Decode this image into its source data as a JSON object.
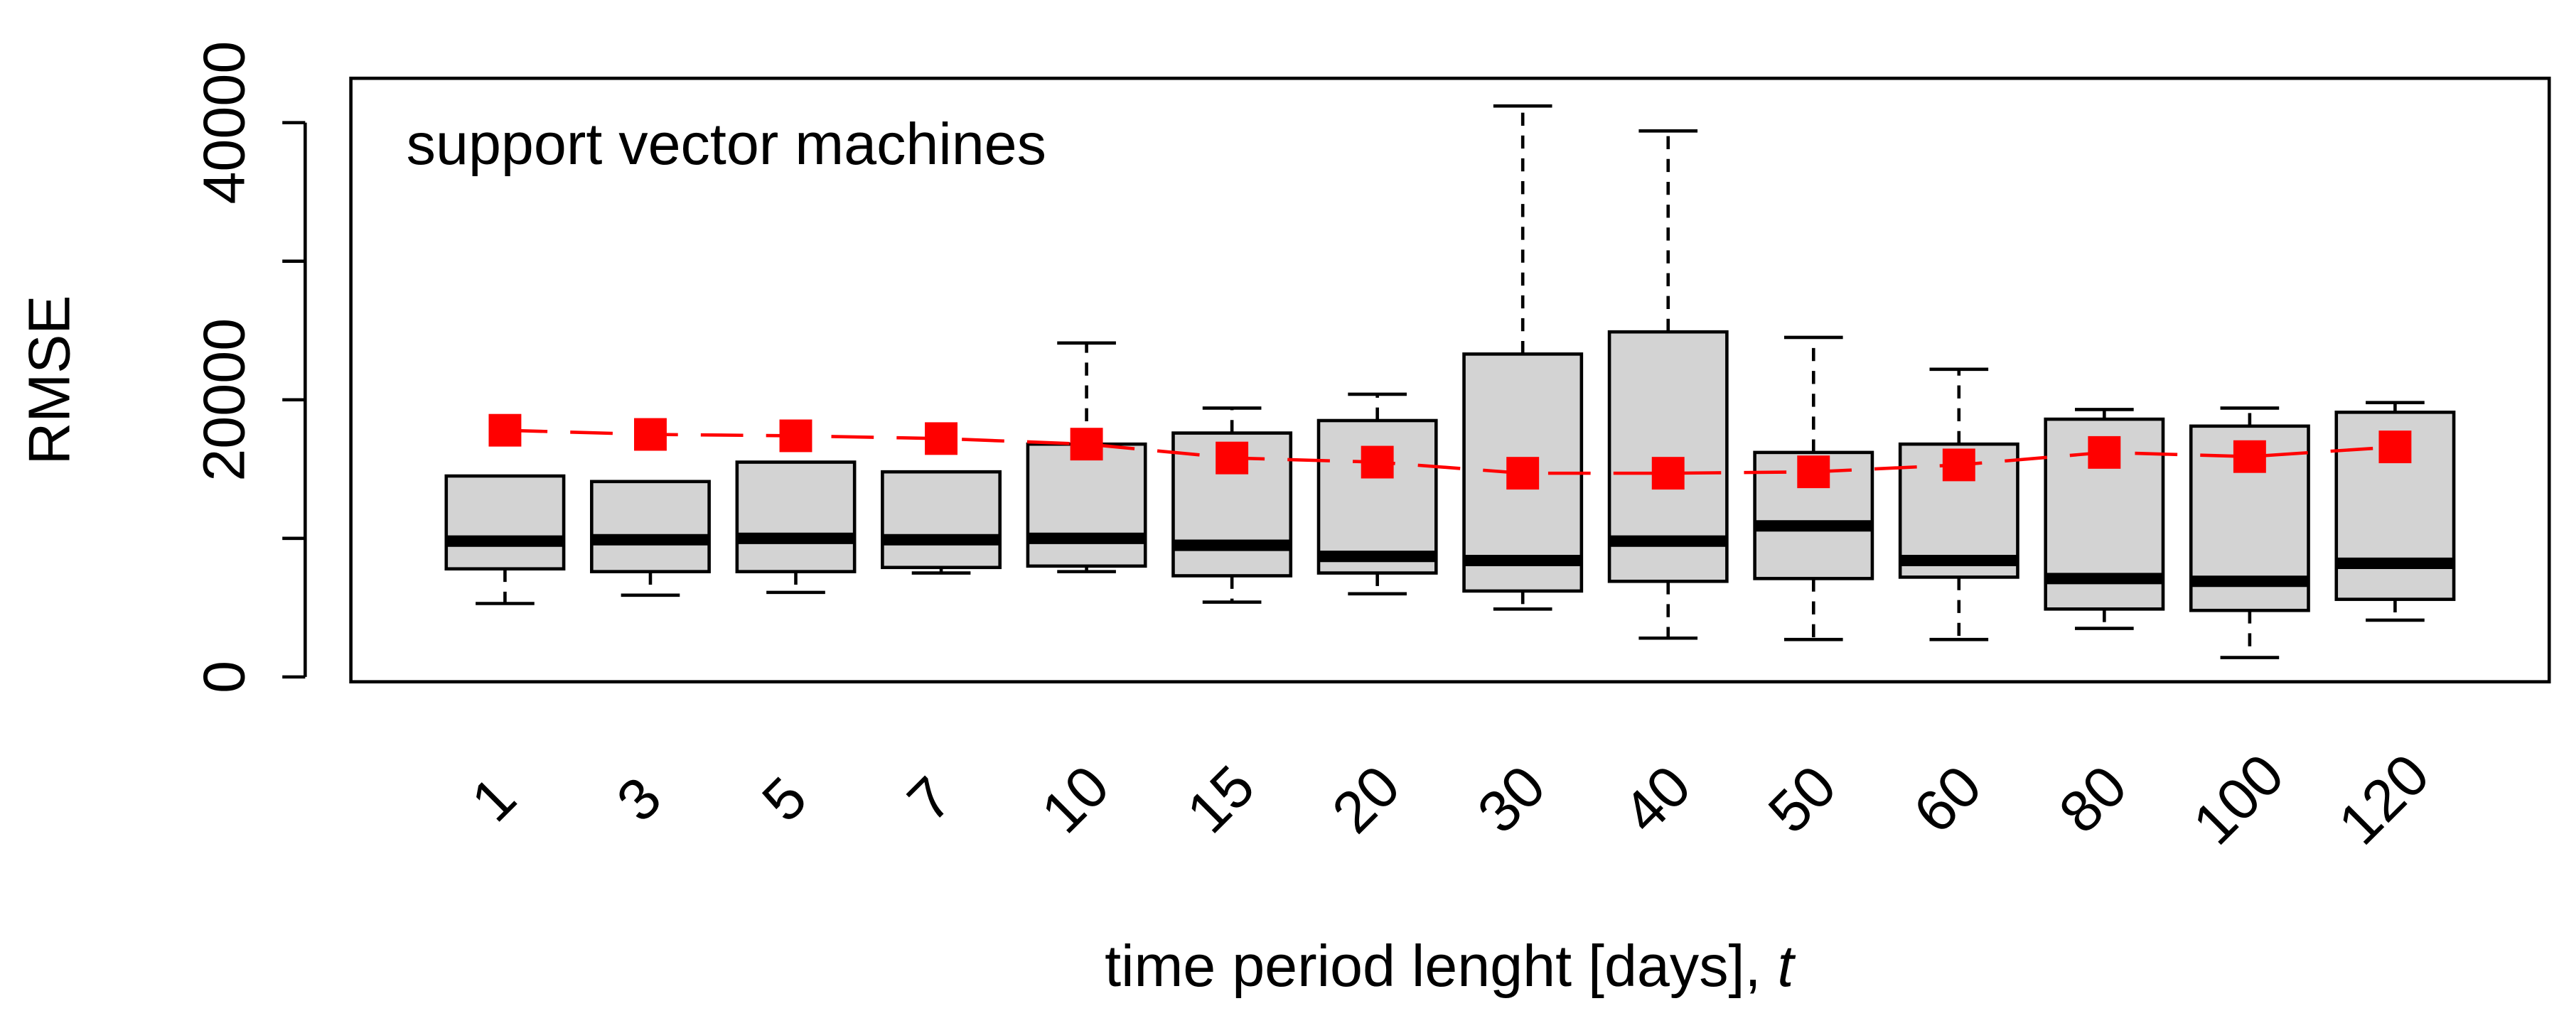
{
  "chart_data": {
    "type": "box",
    "title": "support vector machines",
    "y_label": "RMSE",
    "x_label": "time period lenght [days],",
    "x_label_var": "t",
    "categories": [
      "1",
      "3",
      "5",
      "7",
      "10",
      "15",
      "20",
      "30",
      "40",
      "50",
      "60",
      "80",
      "100",
      "120"
    ],
    "box_color": "#d3d3d3",
    "mean_color": "#ff0000",
    "series": [
      {
        "name": "whisker_low",
        "values": [
          5300,
          5900,
          6100,
          7500,
          7600,
          5400,
          6000,
          4900,
          2800,
          2700,
          2700,
          3500,
          1400,
          4100
        ]
      },
      {
        "name": "q1",
        "values": [
          7800,
          7600,
          7600,
          7900,
          8000,
          7300,
          7500,
          6200,
          6900,
          7100,
          7200,
          4900,
          4800,
          5600
        ]
      },
      {
        "name": "median",
        "values": [
          9800,
          9900,
          10000,
          9900,
          10000,
          9500,
          8700,
          8400,
          9800,
          10900,
          8400,
          7100,
          6900,
          8200
        ]
      },
      {
        "name": "q3",
        "values": [
          14500,
          14100,
          15500,
          14800,
          16800,
          17600,
          18500,
          23300,
          24900,
          16200,
          16800,
          18600,
          18100,
          19100
        ]
      },
      {
        "name": "whisker_high",
        "values": [
          14500,
          14100,
          15500,
          14800,
          24100,
          19400,
          20400,
          41200,
          39400,
          24500,
          22200,
          19300,
          19400,
          19800
        ]
      },
      {
        "name": "mean",
        "values": [
          17800,
          17500,
          17400,
          17200,
          16800,
          15800,
          15500,
          14700,
          14700,
          14800,
          15300,
          16200,
          15900,
          16600
        ]
      }
    ],
    "ylim": [
      -350,
      43200
    ],
    "yticks": [
      0,
      20000,
      40000
    ],
    "yminor_ticks": [
      10000,
      30000
    ]
  }
}
